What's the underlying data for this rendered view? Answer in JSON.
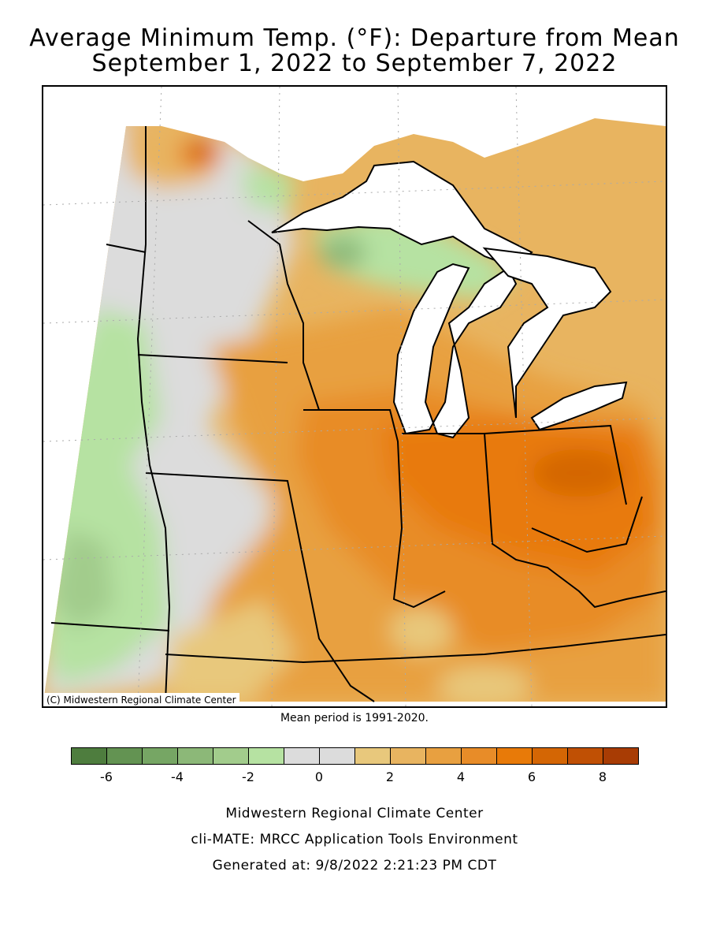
{
  "title_line1": "Average Minimum Temp. (°F): Departure from Mean",
  "title_line2": "September 1, 2022 to September 7, 2022",
  "map_credit": "(C) Midwestern Regional Climate Center",
  "mean_period": "Mean period is 1991-2020.",
  "legend": {
    "bins": [
      {
        "from": -7,
        "to": -6,
        "color": "#4e7d3e"
      },
      {
        "from": -6,
        "to": -5,
        "color": "#639352"
      },
      {
        "from": -5,
        "to": -4,
        "color": "#76a664"
      },
      {
        "from": -4,
        "to": -3,
        "color": "#8cb878"
      },
      {
        "from": -3,
        "to": -2,
        "color": "#a2cc8c"
      },
      {
        "from": -2,
        "to": -1,
        "color": "#b6e2a2"
      },
      {
        "from": -1,
        "to": 0,
        "color": "#dcdcdc"
      },
      {
        "from": 0,
        "to": 1,
        "color": "#dcdcdc"
      },
      {
        "from": 1,
        "to": 2,
        "color": "#e8c87c"
      },
      {
        "from": 2,
        "to": 3,
        "color": "#e8b460"
      },
      {
        "from": 3,
        "to": 4,
        "color": "#e8a040"
      },
      {
        "from": 4,
        "to": 5,
        "color": "#e88c28"
      },
      {
        "from": 5,
        "to": 6,
        "color": "#e87a08"
      },
      {
        "from": 6,
        "to": 7,
        "color": "#d46604"
      },
      {
        "from": 7,
        "to": 8,
        "color": "#c05004"
      },
      {
        "from": 8,
        "to": 9,
        "color": "#a83c04"
      }
    ],
    "tick_labels": [
      "-6",
      "-4",
      "-2",
      "0",
      "2",
      "4",
      "6",
      "8"
    ]
  },
  "footer": {
    "line1": "Midwestern Regional Climate Center",
    "line2": "cli-MATE: MRCC Application Tools Environment",
    "line3": "Generated at: 9/8/2022 2:21:23 PM CDT"
  }
}
